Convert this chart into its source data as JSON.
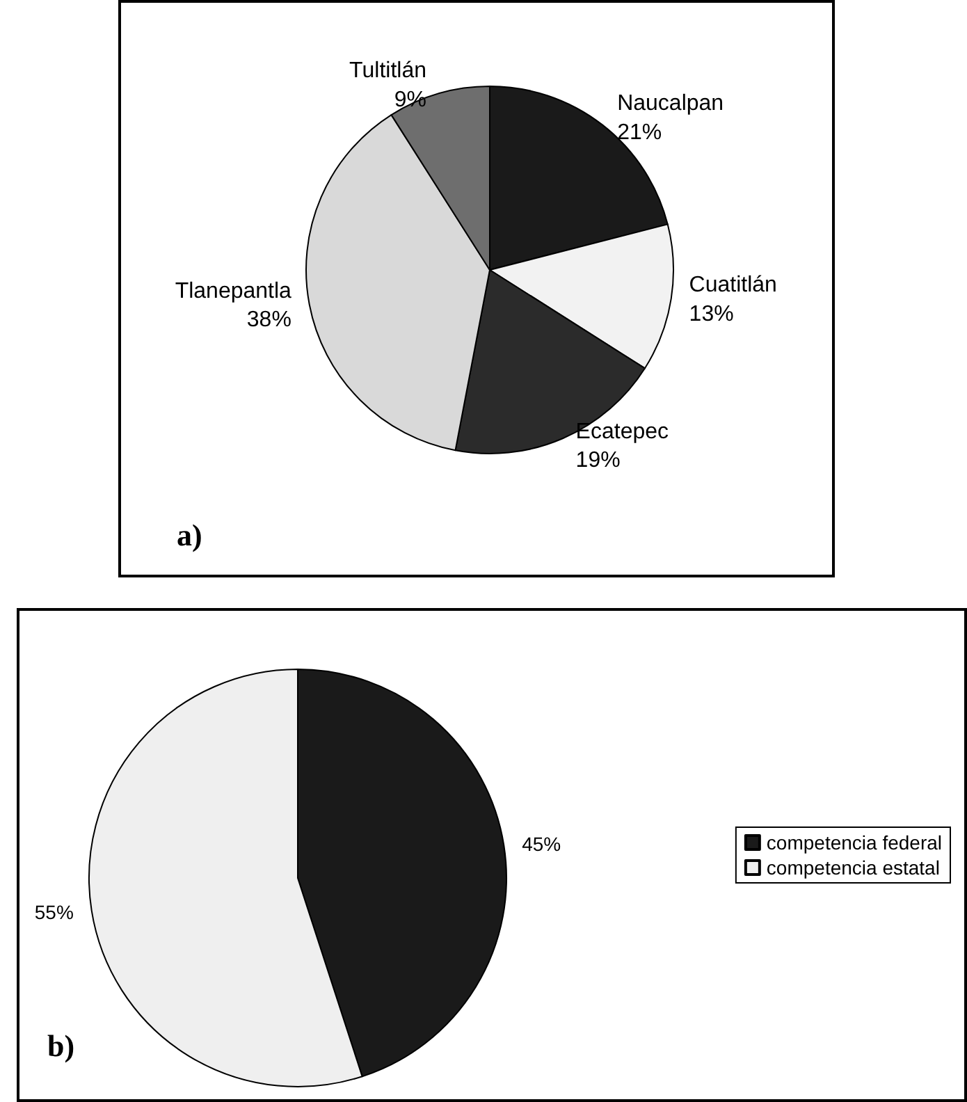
{
  "chart_data": [
    {
      "type": "pie",
      "categories": [
        "Naucalpan",
        "Cuatitlán",
        "Ecatepec",
        "Tlanepantla",
        "Tultitlán"
      ],
      "values": [
        21,
        13,
        19,
        38,
        9
      ],
      "colors": [
        "#1a1a1a",
        "#f2f2f2",
        "#2b2b2b",
        "#d9d9d9",
        "#6e6e6e"
      ],
      "value_labels": [
        "21%",
        "13%",
        "19%",
        "38%",
        "9%"
      ],
      "legend": false,
      "annotations": [
        "a)"
      ]
    },
    {
      "type": "pie",
      "categories": [
        "competencia federal",
        "competencia estatal"
      ],
      "values": [
        45,
        55
      ],
      "colors": [
        "#1a1a1a",
        "#efefef"
      ],
      "value_labels": [
        "45%",
        "55%"
      ],
      "legend": "right",
      "annotations": [
        "b)"
      ]
    }
  ]
}
